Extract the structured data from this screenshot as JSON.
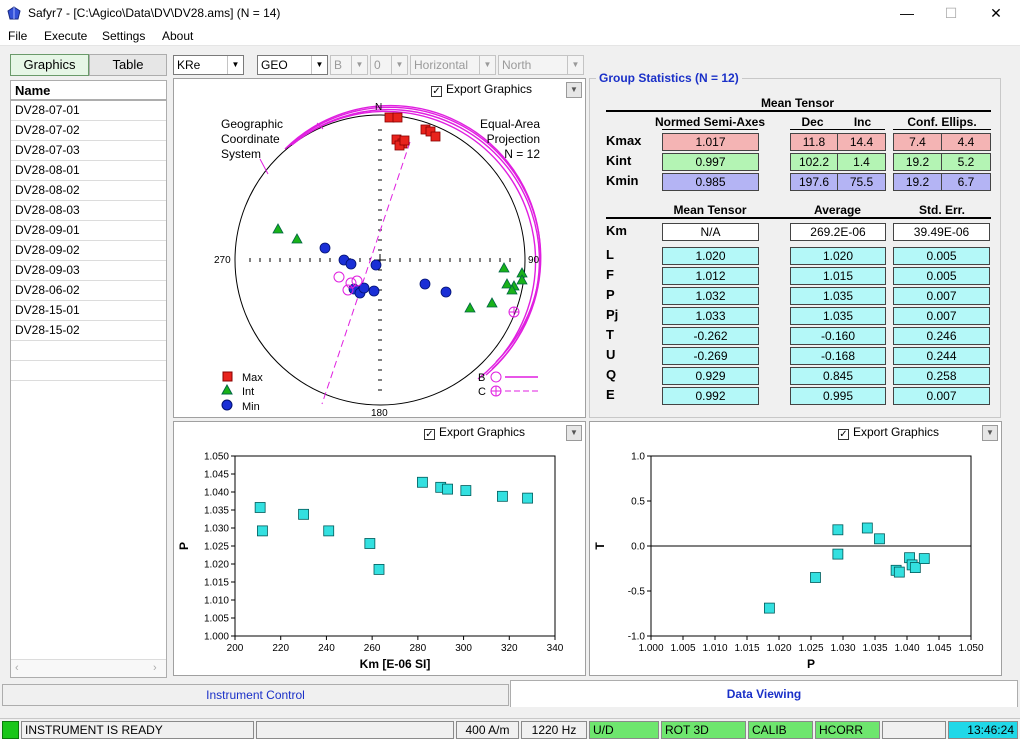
{
  "window": {
    "title": "Safyr7 - [C:\\Agico\\Data\\DV\\DV28.ams]      (N = 14)",
    "minimize": "—",
    "maximize": "☐",
    "close": "✕"
  },
  "menu": [
    "File",
    "Execute",
    "Settings",
    "About"
  ],
  "view_tabs": {
    "graphics": "Graphics",
    "table": "Table"
  },
  "list": {
    "header": "Name",
    "items": [
      "DV28-07-01",
      "DV28-07-02",
      "DV28-07-03",
      "DV28-08-01",
      "DV28-08-02",
      "DV28-08-03",
      "DV28-09-01",
      "DV28-09-02",
      "DV28-09-03",
      "DV28-06-02",
      "DV28-15-01",
      "DV28-15-02"
    ]
  },
  "toolbar": {
    "tensor": "KRe",
    "system": "GEO",
    "b": "B",
    "zero": "0",
    "orientation": "Horizontal",
    "north": "North"
  },
  "export_label": "Export Graphics",
  "stereonet": {
    "left_text": [
      "Geographic",
      "Coordinate",
      "System"
    ],
    "right_text": [
      "Equal-Area",
      "Projection",
      "N = 12"
    ],
    "labels": {
      "n": "N",
      "s": "180",
      "w": "270",
      "e": "90"
    },
    "legend": {
      "max": "Max",
      "int": "Int",
      "min": "Min",
      "b": "B",
      "c": "C"
    }
  },
  "group_stats": {
    "title": "Group Statistics (N = 12)",
    "mean_tensor": "Mean Tensor",
    "headers": {
      "normed": "Normed Semi-Axes",
      "dec": "Dec",
      "inc": "Inc",
      "conf": "Conf. Ellips."
    },
    "rows": [
      {
        "label": "Kmax",
        "normed": "1.017",
        "dec": "11.8",
        "inc": "14.4",
        "c1": "7.4",
        "c2": "4.4"
      },
      {
        "label": "Kint",
        "normed": "0.997",
        "dec": "102.2",
        "inc": "1.4",
        "c1": "19.2",
        "c2": "5.2"
      },
      {
        "label": "Kmin",
        "normed": "0.985",
        "dec": "197.6",
        "inc": "75.5",
        "c1": "19.2",
        "c2": "6.7"
      }
    ],
    "headers2": {
      "mean": "Mean Tensor",
      "avg": "Average",
      "err": "Std. Err."
    },
    "km": {
      "label": "Km",
      "mean": "N/A",
      "avg": "269.2E-06",
      "err": "39.49E-06"
    },
    "params": [
      {
        "label": "L",
        "mean": "1.020",
        "avg": "1.020",
        "err": "0.005"
      },
      {
        "label": "F",
        "mean": "1.012",
        "avg": "1.015",
        "err": "0.005"
      },
      {
        "label": "P",
        "mean": "1.032",
        "avg": "1.035",
        "err": "0.007"
      },
      {
        "label": "Pj",
        "mean": "1.033",
        "avg": "1.035",
        "err": "0.007"
      },
      {
        "label": "T",
        "mean": "-0.262",
        "avg": "-0.160",
        "err": "0.246"
      },
      {
        "label": "U",
        "mean": "-0.269",
        "avg": "-0.168",
        "err": "0.244"
      },
      {
        "label": "Q",
        "mean": "0.929",
        "avg": "0.845",
        "err": "0.258"
      },
      {
        "label": "E",
        "mean": "0.992",
        "avg": "0.995",
        "err": "0.007"
      }
    ]
  },
  "colors": {
    "max": "#e8231d",
    "int": "#19b219",
    "min": "#1a2fd6",
    "circle": "#e01fe0",
    "cyan": "#33e0e0",
    "pink": "#f4b4b4",
    "green": "#b4f4b4",
    "lav": "#b4b4f4",
    "cyanCell": "#b4f8f8"
  },
  "chart_data": [
    {
      "type": "scatter",
      "title": "",
      "xlabel": "Km [E-06 SI]",
      "ylabel": "P",
      "xlim": [
        200,
        340
      ],
      "ylim": [
        1.0,
        1.05
      ],
      "xticks": [
        "200",
        "220",
        "240",
        "260",
        "280",
        "300",
        "320",
        "340"
      ],
      "yticks": [
        "1.000",
        "1.005",
        "1.010",
        "1.015",
        "1.020",
        "1.025",
        "1.030",
        "1.035",
        "1.040",
        "1.045",
        "1.050"
      ],
      "points": [
        [
          211,
          1.0357
        ],
        [
          212,
          1.0292
        ],
        [
          230,
          1.0338
        ],
        [
          241,
          1.0292
        ],
        [
          259,
          1.0257
        ],
        [
          263,
          1.0185
        ],
        [
          282,
          1.0427
        ],
        [
          290,
          1.0413
        ],
        [
          293,
          1.0408
        ],
        [
          301,
          1.0404
        ],
        [
          317,
          1.0388
        ],
        [
          328,
          1.0383
        ]
      ]
    },
    {
      "type": "scatter",
      "title": "",
      "xlabel": "P",
      "ylabel": "T",
      "xlim": [
        1.0,
        1.05
      ],
      "ylim": [
        -1.0,
        1.0
      ],
      "xticks": [
        "1.000",
        "1.005",
        "1.010",
        "1.015",
        "1.020",
        "1.025",
        "1.030",
        "1.035",
        "1.040",
        "1.045",
        "1.050"
      ],
      "yticks": [
        "-1.0",
        "-0.5",
        "0.0",
        "0.5",
        "1.0"
      ],
      "points": [
        [
          1.0185,
          -0.69
        ],
        [
          1.0257,
          -0.35
        ],
        [
          1.0292,
          0.18
        ],
        [
          1.0292,
          -0.09
        ],
        [
          1.0338,
          0.2
        ],
        [
          1.0357,
          0.08
        ],
        [
          1.0383,
          -0.27
        ],
        [
          1.0388,
          -0.29
        ],
        [
          1.0404,
          -0.13
        ],
        [
          1.0408,
          -0.21
        ],
        [
          1.0413,
          -0.24
        ],
        [
          1.0427,
          -0.14
        ]
      ]
    }
  ],
  "bottom_tabs": {
    "instrument": "Instrument Control",
    "data": "Data Viewing"
  },
  "statusbar": {
    "ready": "INSTRUMENT IS READY",
    "field": "400 A/m",
    "freq": "1220 Hz",
    "ud": "U/D",
    "rot": "ROT 3D",
    "calib": "CALIB",
    "hcorr": "HCORR",
    "time": "13:46:24"
  }
}
